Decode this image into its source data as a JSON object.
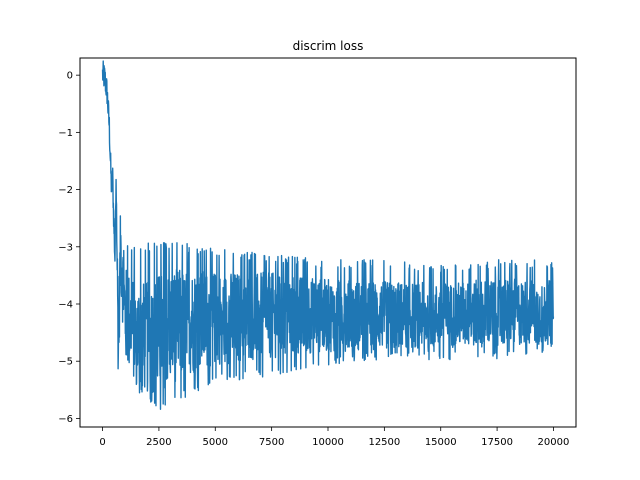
{
  "chart_data": {
    "type": "line",
    "title": "discrim loss",
    "xlabel": "",
    "ylabel": "",
    "xlim": [
      -1000,
      21000
    ],
    "ylim": [
      -6.15,
      0.3
    ],
    "x_ticks": [
      0,
      2500,
      5000,
      7500,
      10000,
      12500,
      15000,
      17500,
      20000
    ],
    "y_ticks": [
      0,
      -1,
      -2,
      -3,
      -4,
      -5,
      -6
    ],
    "grid": false,
    "legend": "none",
    "series": [
      {
        "color": "#1f77b4",
        "x_start": 0,
        "x_end": 20000,
        "approx_points": [
          [
            0,
            0.02
          ],
          [
            100,
            -0.05
          ],
          [
            200,
            -0.3
          ],
          [
            300,
            -0.9
          ],
          [
            350,
            -1.5
          ],
          [
            400,
            -2.0
          ],
          [
            450,
            -1.8
          ],
          [
            500,
            -2.6
          ],
          [
            550,
            -3.2
          ],
          [
            600,
            -1.7
          ],
          [
            650,
            -3.3
          ],
          [
            700,
            -4.8
          ],
          [
            800,
            -3.0
          ],
          [
            1000,
            -4.2
          ],
          [
            1500,
            -4.5
          ],
          [
            2000,
            -4.6
          ],
          [
            2500,
            -4.5
          ],
          [
            3000,
            -4.4
          ],
          [
            4000,
            -4.3
          ],
          [
            5000,
            -4.25
          ],
          [
            7500,
            -4.2
          ],
          [
            10000,
            -4.2
          ],
          [
            12500,
            -4.2
          ],
          [
            15000,
            -4.2
          ],
          [
            17500,
            -4.15
          ],
          [
            20000,
            -4.15
          ]
        ],
        "noise_band": {
          "x": [
            600,
            1000,
            2500,
            3500,
            5000,
            7500,
            10000,
            12500,
            15000,
            17500,
            20000
          ],
          "upper": [
            -3.2,
            -3.0,
            -3.0,
            -3.0,
            -3.1,
            -3.2,
            -3.3,
            -3.3,
            -3.4,
            -3.3,
            -3.3
          ],
          "lower": [
            -4.8,
            -5.3,
            -5.8,
            -5.6,
            -5.3,
            -5.2,
            -5.0,
            -4.9,
            -4.9,
            -4.9,
            -4.8
          ]
        }
      }
    ]
  }
}
